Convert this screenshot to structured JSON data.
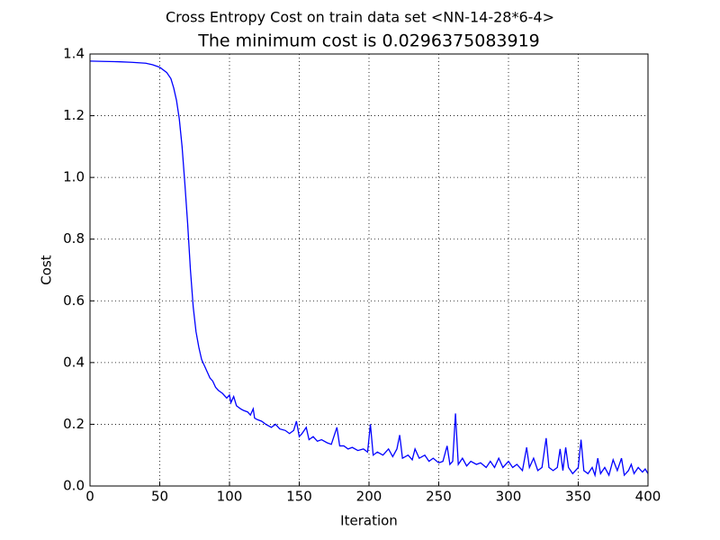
{
  "chart_data": {
    "type": "line",
    "suptitle": "Cross Entropy Cost on train data set <NN-14-28*6-4>",
    "title": "The minimum cost is 0.0296375083919",
    "x_label": "Iteration",
    "y_label": "Cost",
    "xlim": [
      0,
      400
    ],
    "xticks": [
      0,
      50,
      100,
      150,
      200,
      250,
      300,
      350,
      400
    ],
    "ylim": [
      0,
      1.4
    ],
    "yticks": [
      {
        "value": 0,
        "label": "0.0"
      },
      0.2,
      0.4,
      0.6,
      0.8,
      {
        "value": 1,
        "label": "1.0"
      },
      1.2,
      1.4
    ],
    "grid": true,
    "series": [
      {
        "color": "#0000ff",
        "x": [
          0,
          10,
          20,
          30,
          40,
          45,
          50,
          55,
          58,
          60,
          62,
          64,
          66,
          68,
          70,
          72,
          74,
          76,
          78,
          80,
          82,
          84,
          86,
          88,
          90,
          92,
          95,
          98,
          100,
          101,
          103,
          105,
          108,
          110,
          113,
          115,
          117,
          118,
          120,
          123,
          126,
          130,
          133,
          136,
          140,
          143,
          146,
          148,
          150,
          152,
          155,
          157,
          160,
          163,
          166,
          170,
          173,
          177,
          179,
          182,
          185,
          188,
          192,
          196,
          199,
          201,
          203,
          206,
          210,
          214,
          217,
          220,
          222,
          224,
          228,
          231,
          233,
          236,
          240,
          243,
          246,
          250,
          253,
          256,
          258,
          260,
          262,
          264,
          267,
          270,
          273,
          277,
          280,
          284,
          287,
          290,
          293,
          296,
          300,
          303,
          306,
          310,
          313,
          315,
          318,
          321,
          324,
          327,
          329,
          332,
          335,
          337,
          339,
          341,
          343,
          346,
          350,
          352,
          354,
          357,
          360,
          362,
          364,
          366,
          369,
          372,
          375,
          378,
          381,
          383,
          386,
          388,
          390,
          393,
          396,
          398,
          400
        ],
        "values": [
          1.377,
          1.376,
          1.375,
          1.373,
          1.37,
          1.365,
          1.357,
          1.34,
          1.32,
          1.29,
          1.25,
          1.19,
          1.1,
          0.98,
          0.85,
          0.7,
          0.58,
          0.5,
          0.45,
          0.41,
          0.39,
          0.37,
          0.35,
          0.34,
          0.32,
          0.31,
          0.3,
          0.285,
          0.295,
          0.27,
          0.29,
          0.26,
          0.25,
          0.245,
          0.24,
          0.23,
          0.25,
          0.22,
          0.215,
          0.21,
          0.2,
          0.19,
          0.2,
          0.185,
          0.18,
          0.17,
          0.18,
          0.21,
          0.16,
          0.17,
          0.19,
          0.15,
          0.16,
          0.145,
          0.15,
          0.14,
          0.135,
          0.19,
          0.13,
          0.13,
          0.12,
          0.125,
          0.115,
          0.12,
          0.11,
          0.2,
          0.1,
          0.11,
          0.1,
          0.12,
          0.095,
          0.12,
          0.165,
          0.09,
          0.1,
          0.085,
          0.12,
          0.09,
          0.1,
          0.08,
          0.09,
          0.075,
          0.08,
          0.13,
          0.07,
          0.08,
          0.235,
          0.07,
          0.09,
          0.065,
          0.08,
          0.07,
          0.075,
          0.06,
          0.08,
          0.06,
          0.09,
          0.06,
          0.08,
          0.06,
          0.07,
          0.05,
          0.125,
          0.06,
          0.09,
          0.05,
          0.06,
          0.155,
          0.06,
          0.05,
          0.06,
          0.12,
          0.05,
          0.125,
          0.06,
          0.04,
          0.06,
          0.15,
          0.05,
          0.04,
          0.06,
          0.035,
          0.09,
          0.04,
          0.06,
          0.035,
          0.085,
          0.05,
          0.09,
          0.035,
          0.05,
          0.07,
          0.04,
          0.06,
          0.045,
          0.055,
          0.04
        ]
      }
    ]
  }
}
